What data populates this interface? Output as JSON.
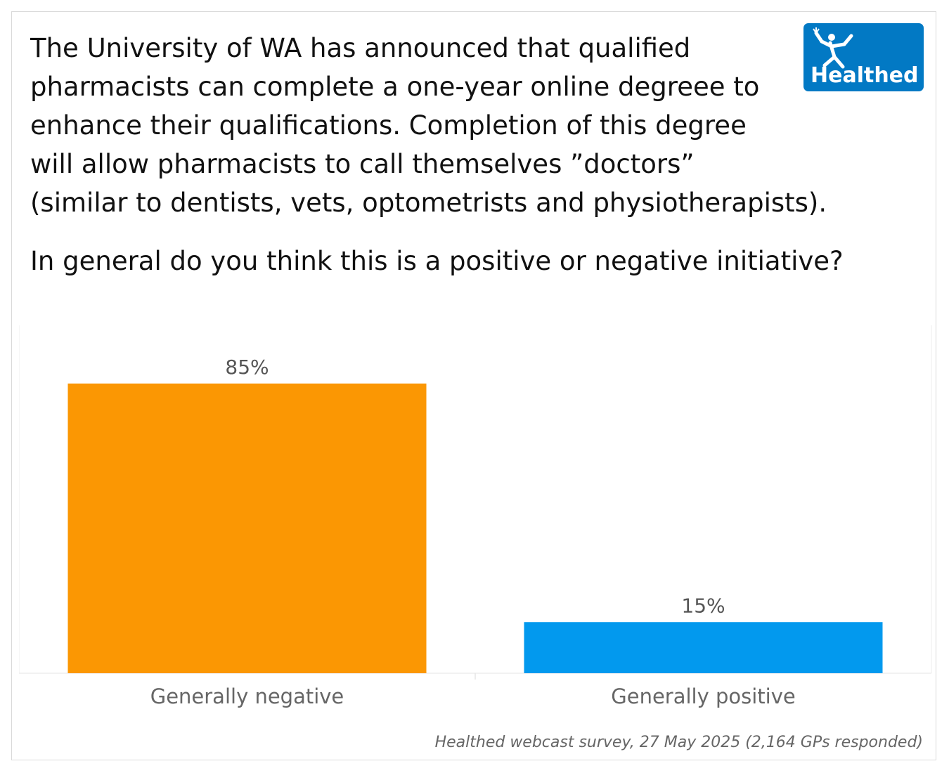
{
  "question": {
    "intro": "The University of WA has announced that qualified\npharmacists can complete a one-year online degreee to\nenhance their qualifications. Completion of this degree\nwill allow pharmacists to call themselves ”doctors”\n(similar to dentists, vets, optometrists and physiotherapists).",
    "ask": "In general do you think this is a positive or negative initiative?"
  },
  "logo": {
    "text": "Healthed",
    "icon": "running-figure-icon",
    "background": "#0279c4"
  },
  "chart_data": {
    "type": "bar",
    "categories": [
      "Generally negative",
      "Generally positive"
    ],
    "values": [
      85,
      15
    ],
    "value_labels": [
      "85%",
      "15%"
    ],
    "colors": [
      "#fb9703",
      "#0299ee"
    ],
    "ylim": [
      0,
      100
    ],
    "grid": false
  },
  "source": "Healthed webcast survey, 27 May 2025 (2,164 GPs responded)"
}
